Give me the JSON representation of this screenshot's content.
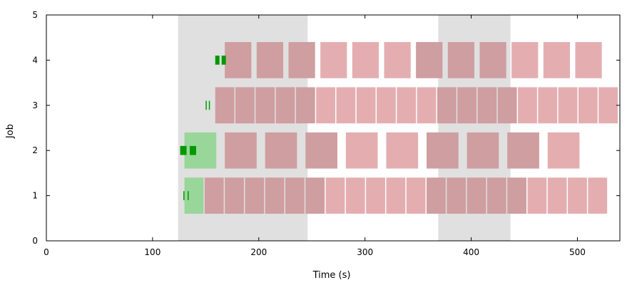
{
  "chart_data": {
    "type": "gantt",
    "xlabel": "Time (s)",
    "ylabel": "Job",
    "xlim": [
      0,
      540
    ],
    "ylim": [
      0,
      5
    ],
    "xticks": [
      0,
      100,
      200,
      300,
      400,
      500
    ],
    "yticks": [
      0,
      1,
      2,
      3,
      4,
      5
    ],
    "grid": false,
    "legend": "none",
    "colors": {
      "shaded_band": "#e0e0e0",
      "task": "#e4aeb1",
      "task_overlap": "#cf9ea1",
      "green_task": "#99d699",
      "green_marker": "#009900",
      "axis": "#000000"
    },
    "shaded_intervals": [
      [
        124,
        246
      ],
      [
        369,
        437
      ]
    ],
    "jobs": [
      {
        "job": 1,
        "green_tasks": [
          [
            130,
            148
          ]
        ],
        "markers": [
          [
            129,
            130
          ],
          [
            133,
            134
          ]
        ],
        "tasks": [
          [
            149,
            167
          ],
          [
            168,
            186
          ],
          [
            187,
            205
          ],
          [
            206,
            224
          ],
          [
            225,
            243
          ],
          [
            244,
            262
          ],
          [
            263,
            281
          ],
          [
            282,
            300
          ],
          [
            301,
            319
          ],
          [
            320,
            338
          ],
          [
            339,
            357
          ],
          [
            358,
            376
          ],
          [
            377,
            395
          ],
          [
            396,
            414
          ],
          [
            415,
            433
          ],
          [
            434,
            452
          ],
          [
            453,
            471
          ],
          [
            472,
            490
          ],
          [
            491,
            509
          ],
          [
            510,
            528
          ]
        ]
      },
      {
        "job": 2,
        "green_tasks": [
          [
            130,
            160
          ]
        ],
        "markers": [
          [
            126,
            132
          ],
          [
            135,
            141
          ]
        ],
        "tasks": [
          [
            168,
            198
          ],
          [
            206,
            236
          ],
          [
            244,
            274
          ],
          [
            282,
            312
          ],
          [
            320,
            350
          ],
          [
            358,
            388
          ],
          [
            396,
            426
          ],
          [
            434,
            464
          ],
          [
            472,
            502
          ]
        ]
      },
      {
        "job": 3,
        "green_tasks": [],
        "markers": [
          [
            150,
            151
          ],
          [
            153,
            154
          ]
        ],
        "tasks": [
          [
            159,
            177
          ],
          [
            178,
            196
          ],
          [
            197,
            215
          ],
          [
            216,
            234
          ],
          [
            235,
            253
          ],
          [
            254,
            272
          ],
          [
            273,
            291
          ],
          [
            292,
            310
          ],
          [
            311,
            329
          ],
          [
            330,
            348
          ],
          [
            349,
            367
          ],
          [
            368,
            386
          ],
          [
            387,
            405
          ],
          [
            406,
            424
          ],
          [
            425,
            443
          ],
          [
            444,
            462
          ],
          [
            463,
            481
          ],
          [
            482,
            500
          ],
          [
            501,
            519
          ],
          [
            520,
            538
          ]
        ]
      },
      {
        "job": 4,
        "green_tasks": [],
        "markers": [
          [
            159,
            163
          ],
          [
            165,
            169
          ]
        ],
        "tasks": [
          [
            168,
            193
          ],
          [
            198,
            223
          ],
          [
            228,
            253
          ],
          [
            258,
            283
          ],
          [
            288,
            313
          ],
          [
            318,
            343
          ],
          [
            348,
            373
          ],
          [
            378,
            403
          ],
          [
            408,
            433
          ],
          [
            438,
            463
          ],
          [
            468,
            493
          ],
          [
            498,
            523
          ]
        ]
      }
    ]
  }
}
